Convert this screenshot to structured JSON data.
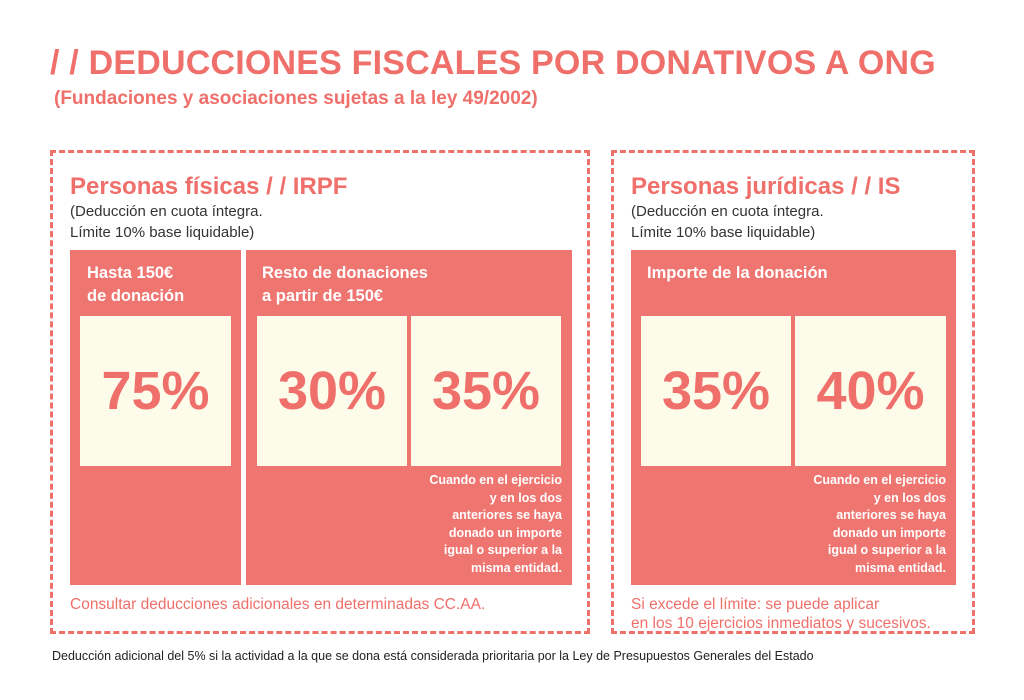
{
  "header": {
    "title": "/ / DEDUCCIONES FISCALES POR DONATIVOS A ONG",
    "subtitle": "(Fundaciones y asociaciones sujetas a la ley 49/2002)"
  },
  "left_panel": {
    "title": "Personas físicas / / IRPF",
    "note_line1": "(Deducción en cuota íntegra.",
    "note_line2": "Límite 10% base liquidable)",
    "block1": {
      "label_line1": "Hasta 150€",
      "label_line2": "de donación",
      "value": "75%"
    },
    "block2": {
      "label_line1": "Resto de donaciones",
      "label_line2": "a partir de 150€",
      "value_a": "30%",
      "value_b": "35%",
      "condition": "Cuando en el ejercicio\ny en los dos\nanteriores se haya\ndonado un importe\nigual o superior a la\nmisma entidad."
    },
    "footnote": "Consultar deducciones adicionales en determinadas CC.AA."
  },
  "right_panel": {
    "title": "Personas jurídicas / / IS",
    "note_line1": "(Deducción en cuota íntegra.",
    "note_line2": "Límite 10% base liquidable)",
    "block": {
      "label": "Importe de la donación",
      "value_a": "35%",
      "value_b": "40%",
      "condition": "Cuando en el ejercicio\ny en los dos\nanteriores se haya\ndonado un importe\nigual o superior a la\nmisma entidad."
    },
    "footnote_line1": "Si excede el límite: se puede aplicar",
    "footnote_line2": "en los 10 ejercicios inmediatos y sucesivos."
  },
  "footer": {
    "text": "Deducción adicional del 5% si la actividad a la que se dona está considerada prioritaria por la Ley de Presupuestos Generales del Estado"
  },
  "colors": {
    "accent": "#ef6f6a",
    "block": "#ef7570",
    "cell": "#fdfbea"
  }
}
